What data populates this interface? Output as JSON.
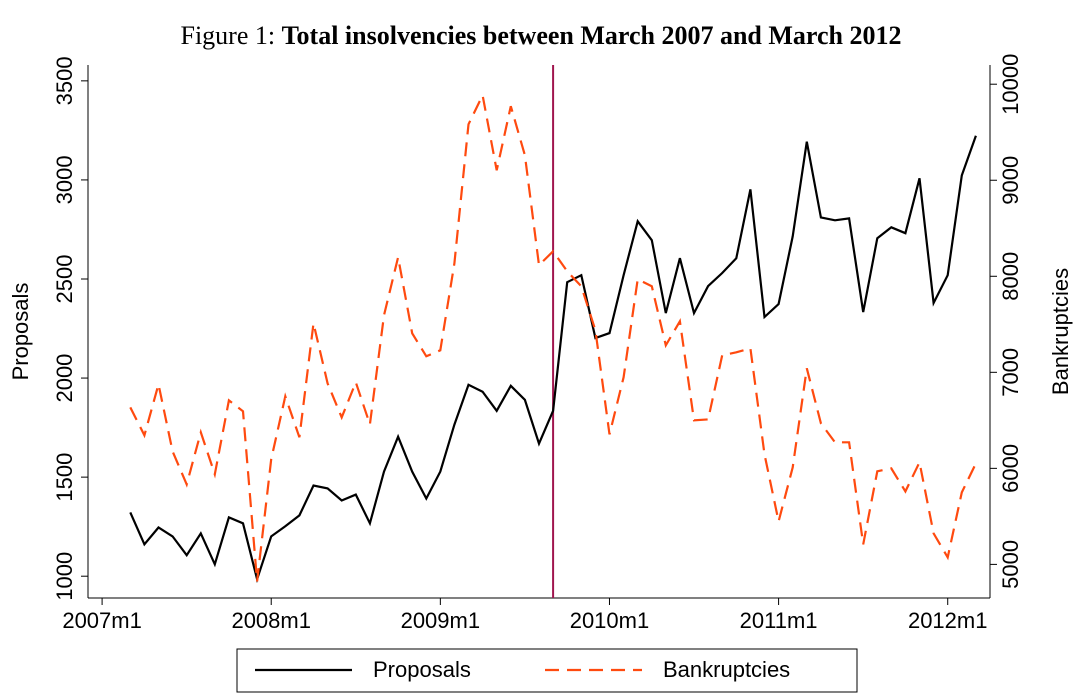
{
  "chart_data": {
    "type": "line",
    "caption": "Figure 1:",
    "title": "Total insolvencies between March 2007 and March 2012",
    "y_label": "Proposals",
    "y2_label": "Bankruptcies",
    "x": [
      "2007m3",
      "2007m4",
      "2007m5",
      "2007m6",
      "2007m7",
      "2007m8",
      "2007m9",
      "2007m10",
      "2007m11",
      "2007m12",
      "2008m1",
      "2008m2",
      "2008m3",
      "2008m4",
      "2008m5",
      "2008m6",
      "2008m7",
      "2008m8",
      "2008m9",
      "2008m10",
      "2008m11",
      "2008m12",
      "2009m1",
      "2009m2",
      "2009m3",
      "2009m4",
      "2009m5",
      "2009m6",
      "2009m7",
      "2009m8",
      "2009m9",
      "2009m10",
      "2009m11",
      "2009m12",
      "2010m1",
      "2010m2",
      "2010m3",
      "2010m4",
      "2010m5",
      "2010m6",
      "2010m7",
      "2010m8",
      "2010m9",
      "2010m10",
      "2010m11",
      "2010m12",
      "2011m1",
      "2011m2",
      "2011m3",
      "2011m4",
      "2011m5",
      "2011m6",
      "2011m7",
      "2011m8",
      "2011m9",
      "2011m10",
      "2011m11",
      "2011m12",
      "2012m1",
      "2012m2",
      "2012m3"
    ],
    "series": [
      {
        "name": "Proposals",
        "color": "#000000",
        "dash": false,
        "values": [
          1322,
          1161,
          1246,
          1201,
          1106,
          1216,
          1060,
          1297,
          1267,
          985,
          1201,
          1252,
          1307,
          1458,
          1443,
          1382,
          1412,
          1267,
          1528,
          1704,
          1528,
          1392,
          1528,
          1765,
          1966,
          1931,
          1835,
          1961,
          1890,
          1669,
          1835,
          2484,
          2519,
          2202,
          2227,
          2519,
          2791,
          2696,
          2328,
          2605,
          2328,
          2464,
          2530,
          2605,
          2952,
          2308,
          2374,
          2715,
          3193,
          2811,
          2796,
          2806,
          2333,
          2706,
          2761,
          2731,
          3008,
          2379,
          2519,
          3023,
          3223
        ]
      },
      {
        "name": "Bankruptcies",
        "color": "#ff4a0f",
        "dash": true,
        "axis": "y2",
        "values": [
          6635,
          6344,
          6875,
          6177,
          5833,
          6375,
          5938,
          6708,
          6594,
          4823,
          6094,
          6750,
          6323,
          7510,
          6885,
          6531,
          6896,
          6458,
          7594,
          8198,
          7406,
          7167,
          7229,
          8135,
          9583,
          9885,
          9104,
          9771,
          9260,
          8115,
          8260,
          8052,
          7896,
          7438,
          6354,
          6948,
          7969,
          7896,
          7281,
          7531,
          6500,
          6510,
          7177,
          7208,
          7250,
          6146,
          5448,
          6010,
          7042,
          6469,
          6271,
          6271,
          5208,
          5969,
          6000,
          5760,
          6063,
          5323,
          5073,
          5750,
          6052
        ]
      }
    ],
    "xlim": [
      "2006m12",
      "2012m4"
    ],
    "xticks": [
      "2007m1",
      "2008m1",
      "2009m1",
      "2010m1",
      "2011m1",
      "2012m1"
    ],
    "ylim": [
      890,
      3580
    ],
    "yticks": [
      1000,
      1500,
      2000,
      2500,
      3000,
      3500
    ],
    "y2lim": [
      4650,
      10200
    ],
    "y2ticks": [
      5000,
      6000,
      7000,
      8000,
      9000,
      10000
    ],
    "vline": {
      "x": "2009m9",
      "color": "#a0154e"
    },
    "legend": "bottom"
  }
}
